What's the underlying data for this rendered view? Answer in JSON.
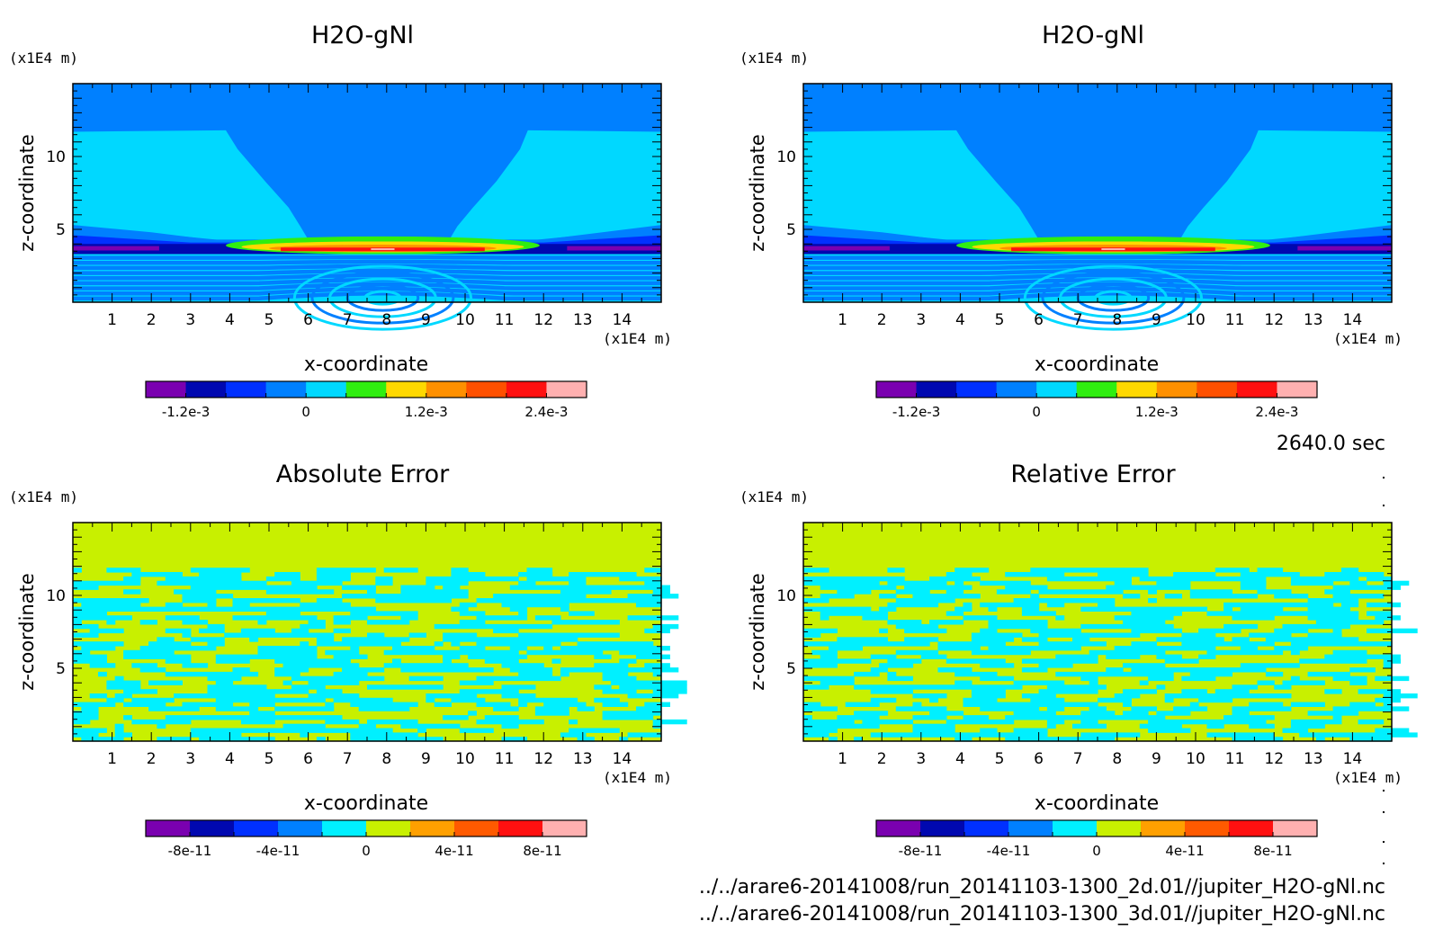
{
  "time_label": "2640.0 sec",
  "files": [
    "../../arare6-20141008/run_20141103-1300_2d.01//jupiter_H2O-gNl.nc",
    "../../arare6-20141008/run_20141103-1300_3d.01//jupiter_H2O-gNl.nc"
  ],
  "chart_data": [
    {
      "type": "heatmap",
      "title": "H2O-gNl",
      "xlabel": "x-coordinate",
      "ylabel": "z-coordinate",
      "xunit": "(x1E4 m)",
      "yunit": "(x1E4 m)",
      "xlim": [
        0,
        15
      ],
      "ylim": [
        0,
        15
      ],
      "x_ticks": [
        "1",
        "2",
        "3",
        "4",
        "5",
        "6",
        "7",
        "8",
        "9",
        "10",
        "11",
        "12",
        "13",
        "14"
      ],
      "y_ticks": [
        "5",
        "10"
      ],
      "colorbar": {
        "colors": [
          "#7a00b0",
          "#0008b0",
          "#0030ff",
          "#0080ff",
          "#00d8ff",
          "#30ee10",
          "#ffd800",
          "#ff9000",
          "#ff5000",
          "#ff1010",
          "#ffb0b0"
        ],
        "tick_labels": [
          "-1.2e-3",
          "0",
          "1.2e-3",
          "2.4e-3"
        ]
      }
    },
    {
      "type": "heatmap",
      "title": "H2O-gNl",
      "xlabel": "x-coordinate",
      "ylabel": "z-coordinate",
      "xunit": "(x1E4 m)",
      "yunit": "(x1E4 m)",
      "xlim": [
        0,
        15
      ],
      "ylim": [
        0,
        15
      ],
      "x_ticks": [
        "1",
        "2",
        "3",
        "4",
        "5",
        "6",
        "7",
        "8",
        "9",
        "10",
        "11",
        "12",
        "13",
        "14"
      ],
      "y_ticks": [
        "5",
        "10"
      ],
      "colorbar": {
        "colors": [
          "#7a00b0",
          "#0008b0",
          "#0030ff",
          "#0080ff",
          "#00d8ff",
          "#30ee10",
          "#ffd800",
          "#ff9000",
          "#ff5000",
          "#ff1010",
          "#ffb0b0"
        ],
        "tick_labels": [
          "-1.2e-3",
          "0",
          "1.2e-3",
          "2.4e-3"
        ]
      }
    },
    {
      "type": "heatmap",
      "title": "Absolute Error",
      "xlabel": "x-coordinate",
      "ylabel": "z-coordinate",
      "xunit": "(x1E4 m)",
      "yunit": "(x1E4 m)",
      "xlim": [
        0,
        15
      ],
      "ylim": [
        0,
        15
      ],
      "x_ticks": [
        "1",
        "2",
        "3",
        "4",
        "5",
        "6",
        "7",
        "8",
        "9",
        "10",
        "11",
        "12",
        "13",
        "14"
      ],
      "y_ticks": [
        "5",
        "10"
      ],
      "colorbar": {
        "colors": [
          "#7a00b0",
          "#0008b0",
          "#0030ff",
          "#0080ff",
          "#00f0ff",
          "#c8f000",
          "#ffa000",
          "#ff5a00",
          "#ff1010",
          "#ffb0b0"
        ],
        "tick_labels": [
          "-8e-11",
          "-4e-11",
          "0",
          "4e-11",
          "8e-11"
        ]
      }
    },
    {
      "type": "heatmap",
      "title": "Relative Error",
      "xlabel": "x-coordinate",
      "ylabel": "z-coordinate",
      "xunit": "(x1E4 m)",
      "yunit": "(x1E4 m)",
      "xlim": [
        0,
        15
      ],
      "ylim": [
        0,
        15
      ],
      "x_ticks": [
        "1",
        "2",
        "3",
        "4",
        "5",
        "6",
        "7",
        "8",
        "9",
        "10",
        "11",
        "12",
        "13",
        "14"
      ],
      "y_ticks": [
        "5",
        "10"
      ],
      "colorbar": {
        "colors": [
          "#7a00b0",
          "#0008b0",
          "#0030ff",
          "#0080ff",
          "#00f0ff",
          "#c8f000",
          "#ffa000",
          "#ff5a00",
          "#ff1010",
          "#ffb0b0"
        ],
        "tick_labels": [
          "-8e-11",
          "-4e-11",
          "0",
          "4e-11",
          "8e-11"
        ]
      }
    }
  ]
}
